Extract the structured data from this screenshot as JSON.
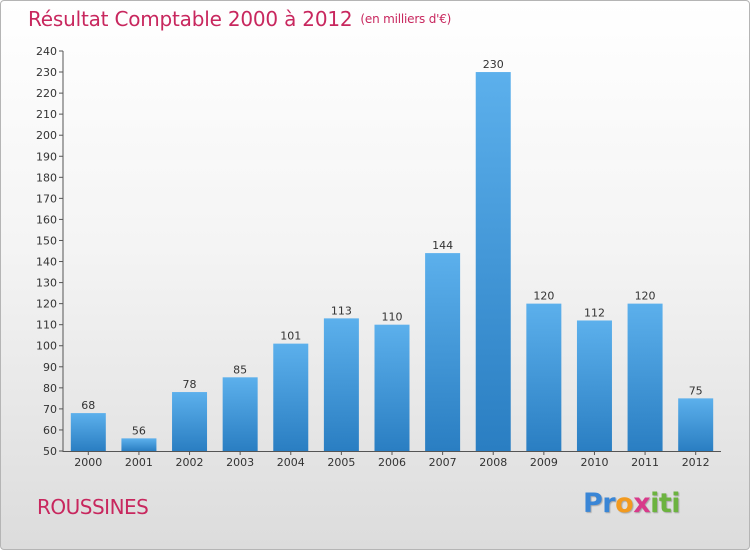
{
  "chart_data": {
    "type": "bar",
    "title": "Résultat Comptable 2000 à 2012",
    "subtitle": "(en milliers d'€)",
    "categories": [
      "2000",
      "2001",
      "2002",
      "2003",
      "2004",
      "2005",
      "2006",
      "2007",
      "2008",
      "2009",
      "2010",
      "2011",
      "2012"
    ],
    "values": [
      68,
      56,
      78,
      85,
      101,
      113,
      110,
      144,
      230,
      120,
      112,
      120,
      75
    ],
    "xlabel": "",
    "ylabel": "",
    "ylim": [
      50,
      240
    ],
    "yticks": [
      50,
      60,
      70,
      80,
      90,
      100,
      110,
      120,
      130,
      140,
      150,
      160,
      170,
      180,
      190,
      200,
      210,
      220,
      230,
      240
    ],
    "grid": false,
    "colors": {
      "bar_light": "#5cb0ec",
      "bar_dark": "#2a7ec2",
      "accent": "#c8275e"
    }
  },
  "place": "ROUSSINES",
  "logo": {
    "letters": [
      "P",
      "r",
      "o",
      "x",
      "i",
      "t",
      "i"
    ],
    "colors": [
      "#3a86d6",
      "#3a86d6",
      "#f29a1f",
      "#d83a8a",
      "#6cb33f",
      "#6cb33f",
      "#6cb33f"
    ]
  }
}
